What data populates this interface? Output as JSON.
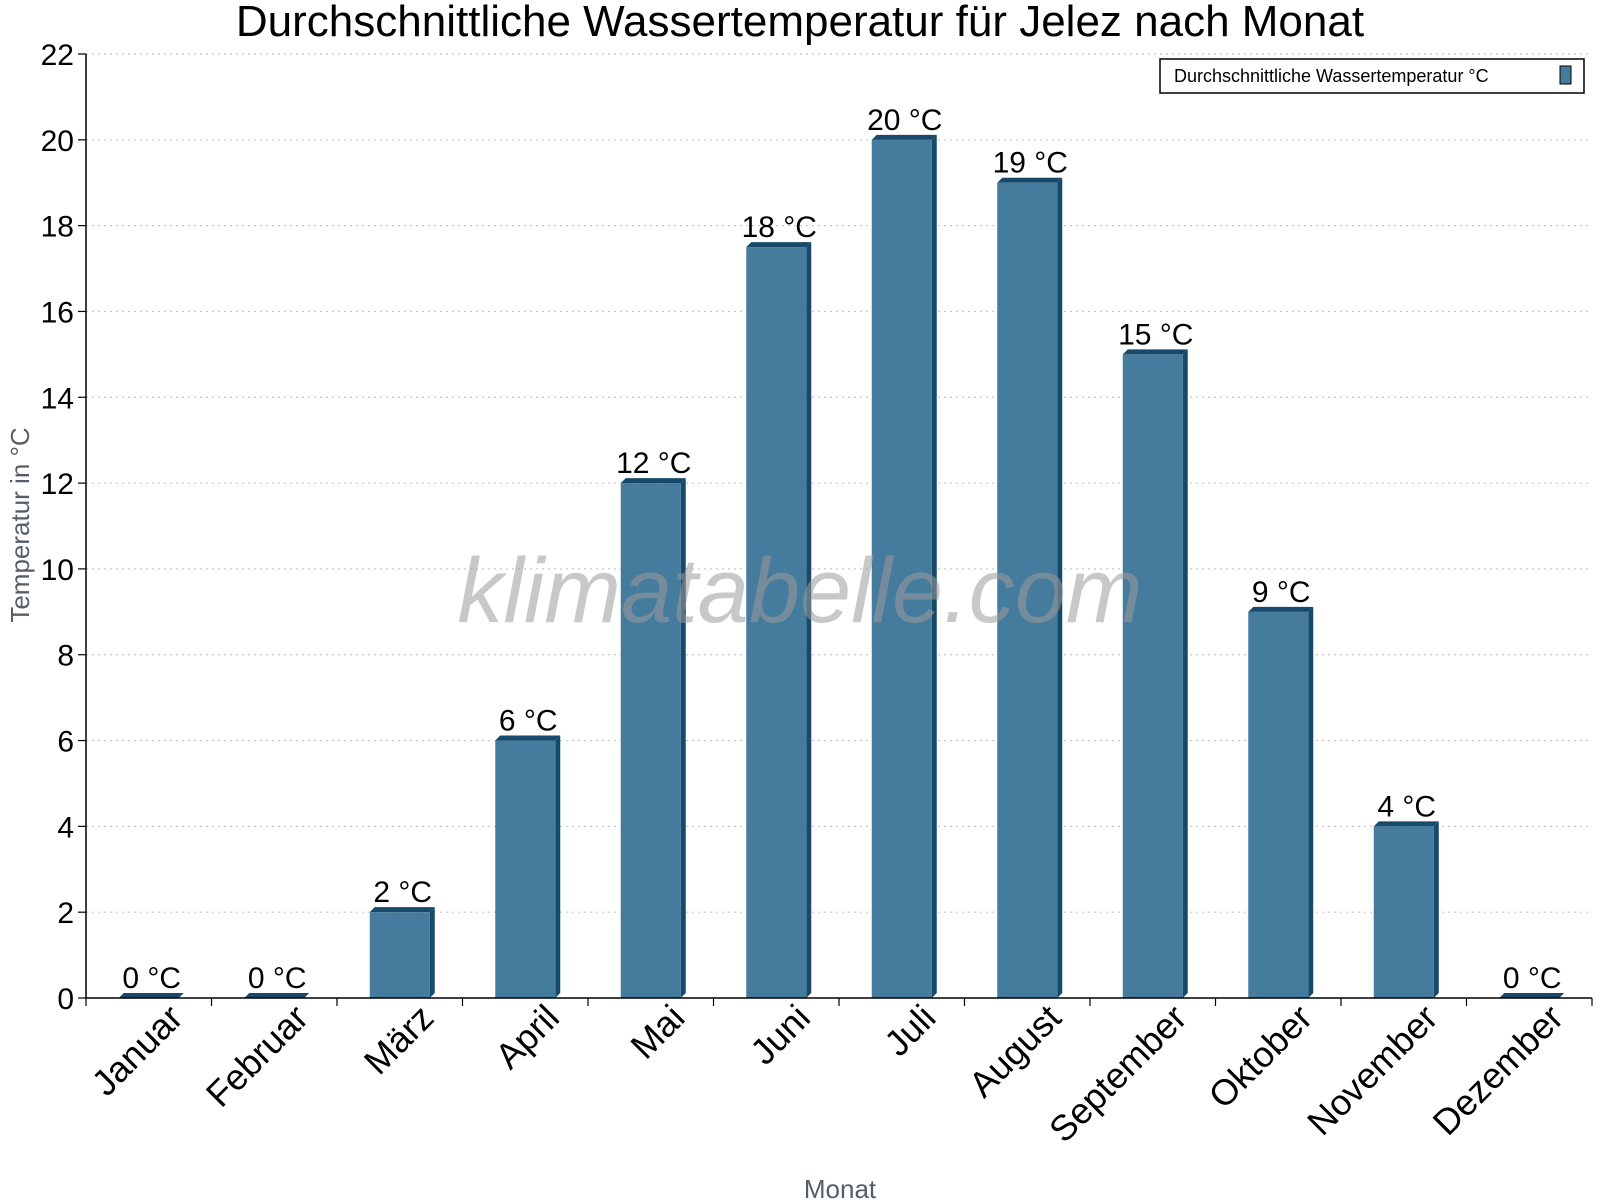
{
  "watermark": "klimatabelle.com",
  "colors": {
    "bar_face": "#457b9d",
    "bar_side": "#174a6a",
    "grid": "#c8c8c8",
    "axis": "#000000"
  },
  "chart_data": {
    "type": "bar",
    "title": "Durchschnittliche Wassertemperatur für Jelez nach Monat",
    "xlabel": "Monat",
    "ylabel": "Temperatur in °C",
    "ylim": [
      0,
      22
    ],
    "yticks": [
      0,
      2,
      4,
      6,
      8,
      10,
      12,
      14,
      16,
      18,
      20,
      22
    ],
    "grid": true,
    "legend_position": "top-right",
    "categories": [
      "Januar",
      "Februar",
      "März",
      "April",
      "Mai",
      "Juni",
      "Juli",
      "August",
      "September",
      "Oktober",
      "November",
      "Dezember"
    ],
    "series": [
      {
        "name": "Durchschnittliche Wassertemperatur °C",
        "values": [
          0,
          0,
          2,
          6,
          12,
          17.5,
          20,
          19,
          15,
          9,
          4,
          0
        ],
        "labels": [
          "0 °C",
          "0 °C",
          "2 °C",
          "6 °C",
          "12 °C",
          "18 °C",
          "20 °C",
          "19 °C",
          "15 °C",
          "9 °C",
          "4 °C",
          "0 °C"
        ]
      }
    ]
  }
}
